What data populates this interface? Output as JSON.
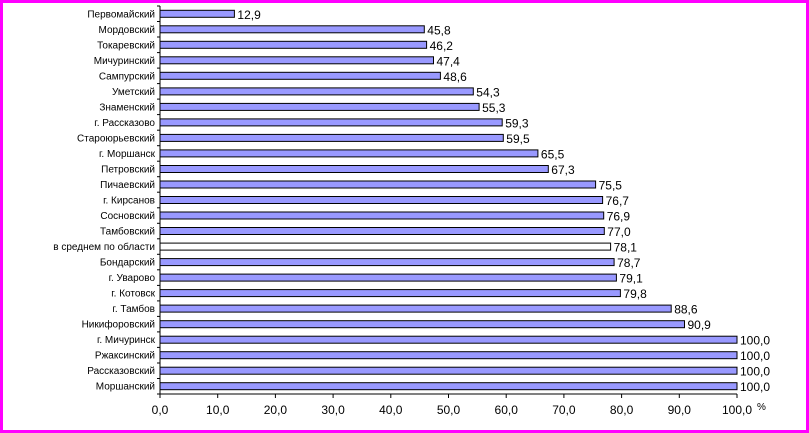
{
  "chart_data": {
    "type": "bar",
    "orientation": "horizontal",
    "categories": [
      "Первомайский",
      "Мордовский",
      "Токаревский",
      "Мичуринский",
      "Сампурский",
      "Уметский",
      "Знаменский",
      "г. Рассказово",
      "Староюрьевский",
      "г. Моршанск",
      "Петровский",
      "Пичаевский",
      "г. Кирсанов",
      "Сосновский",
      "Тамбовский",
      "в среднем по области",
      "Бондарский",
      "г.  Уварово",
      "г. Котовск",
      "г. Тамбов",
      "Никифоровский",
      "г. Мичуринск",
      "Ржаксинский",
      "Рассказовский",
      "Моршанский"
    ],
    "values": [
      12.9,
      45.8,
      46.2,
      47.4,
      48.6,
      54.3,
      55.3,
      59.3,
      59.5,
      65.5,
      67.3,
      75.5,
      76.7,
      76.9,
      77.0,
      78.1,
      78.7,
      79.1,
      79.8,
      88.6,
      90.9,
      100.0,
      100.0,
      100.0,
      100.0
    ],
    "value_labels": [
      "12,9",
      "45,8",
      "46,2",
      "47,4",
      "48,6",
      "54,3",
      "55,3",
      "59,3",
      "59,5",
      "65,5",
      "67,3",
      "75,5",
      "76,7",
      "76,9",
      "77,0",
      "78,1",
      "78,7",
      "79,1",
      "79,8",
      "88,6",
      "90,9",
      "100,0",
      "100,0",
      "100,0",
      "100,0"
    ],
    "highlight_category": "в среднем по области",
    "xlim": [
      0,
      100
    ],
    "xticks": [
      "0,0",
      "10,0",
      "20,0",
      "30,0",
      "40,0",
      "50,0",
      "60,0",
      "70,0",
      "80,0",
      "90,0",
      "100,0"
    ],
    "x_unit": "%",
    "grid": false,
    "legend": "none",
    "colors": {
      "bar": "#9999ff",
      "highlight_bar": "#ffffff",
      "bar_border": "#000000",
      "frame": "#ff00ff"
    }
  }
}
